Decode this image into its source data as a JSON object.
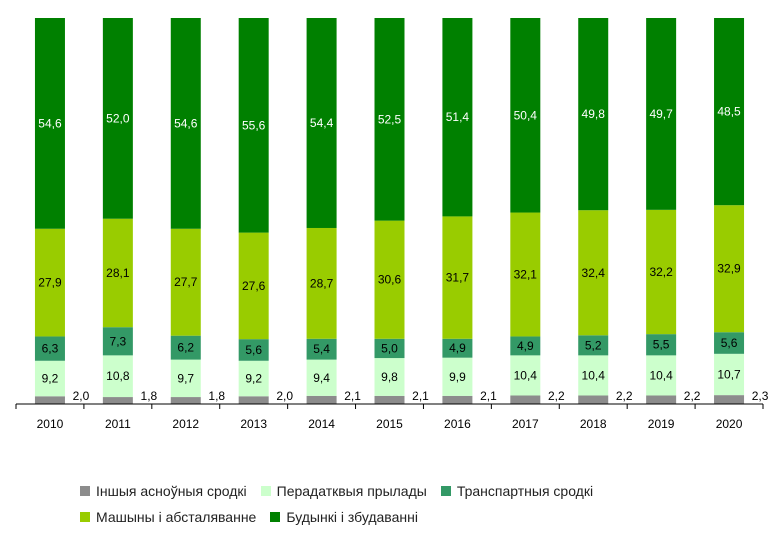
{
  "chart_data": {
    "type": "bar",
    "stacked": true,
    "normalized_percent": true,
    "categories": [
      "2010",
      "2011",
      "2012",
      "2013",
      "2014",
      "2015",
      "2016",
      "2017",
      "2018",
      "2019",
      "2020"
    ],
    "series": [
      {
        "name": "Іншыя асноўныя сродкі",
        "color": "#8c8c8c",
        "values": [
          2.0,
          1.8,
          1.8,
          2.0,
          2.1,
          2.1,
          2.1,
          2.2,
          2.2,
          2.2,
          2.3
        ]
      },
      {
        "name": "Перадатквыя прылады",
        "color": "#ccffcc",
        "values": [
          9.2,
          10.8,
          9.7,
          9.2,
          9.4,
          9.8,
          9.9,
          10.4,
          10.4,
          10.4,
          10.7
        ]
      },
      {
        "name": "Транспартныя сродкі",
        "color": "#339966",
        "values": [
          6.3,
          7.3,
          6.2,
          5.6,
          5.4,
          5.0,
          4.9,
          4.9,
          5.2,
          5.5,
          5.6
        ]
      },
      {
        "name": "Машыны і абсталяванне",
        "color": "#99cc00",
        "values": [
          27.9,
          28.1,
          27.7,
          27.6,
          28.7,
          30.6,
          31.7,
          32.1,
          32.4,
          32.2,
          32.9
        ]
      },
      {
        "name": "Будынкі і збудаванні",
        "color": "#008000",
        "values": [
          54.6,
          52.0,
          54.6,
          55.6,
          54.4,
          52.5,
          51.4,
          50.4,
          49.8,
          49.7,
          48.5
        ]
      }
    ],
    "ylim": [
      0,
      100
    ],
    "grid": false,
    "legend_position": "bottom"
  },
  "legend": {
    "row1": [
      "Іншыя асноўныя сродкі",
      "Перадатквыя прылады",
      "Транспартныя сродкі"
    ],
    "row2": [
      "Машыны і абсталяванне",
      "Будынкі і збудаванні"
    ]
  }
}
